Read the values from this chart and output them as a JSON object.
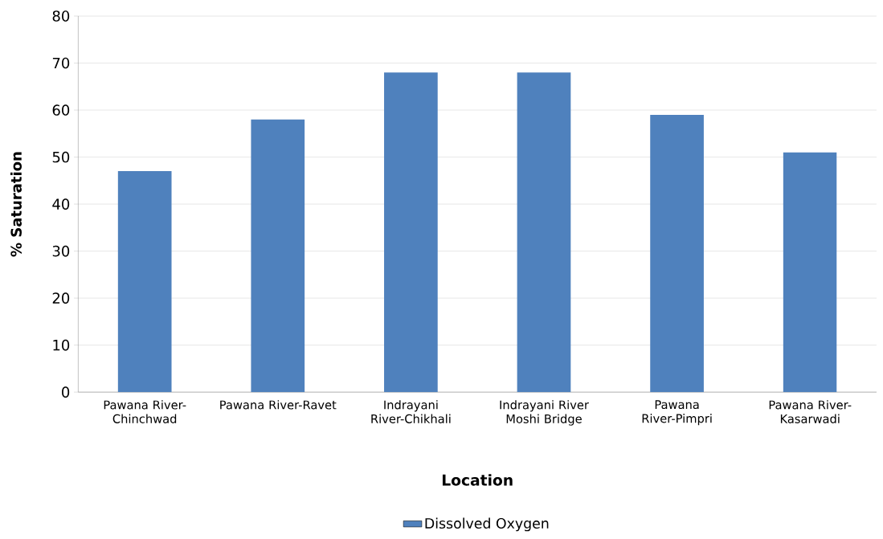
{
  "chart_data": {
    "type": "bar",
    "xlabel": "Location",
    "ylabel": "% Saturation",
    "categories": [
      "Pawana River-Chinchwad",
      "Pawana River-Ravet",
      "Indrayani River-Chikhali",
      "Indrayani River Moshi Bridge",
      "Pawana River-Pimpri",
      "Pawana River-Kasarwadi"
    ],
    "series": [
      {
        "name": "Dissolved Oxygen",
        "color": "#4f81bd",
        "values": [
          47,
          58,
          68,
          68,
          59,
          51
        ]
      }
    ],
    "ylim": [
      0,
      80
    ],
    "yticks": [
      0,
      10,
      20,
      30,
      40,
      50,
      60,
      70,
      80
    ],
    "grid": "y",
    "legend": "bottom"
  }
}
